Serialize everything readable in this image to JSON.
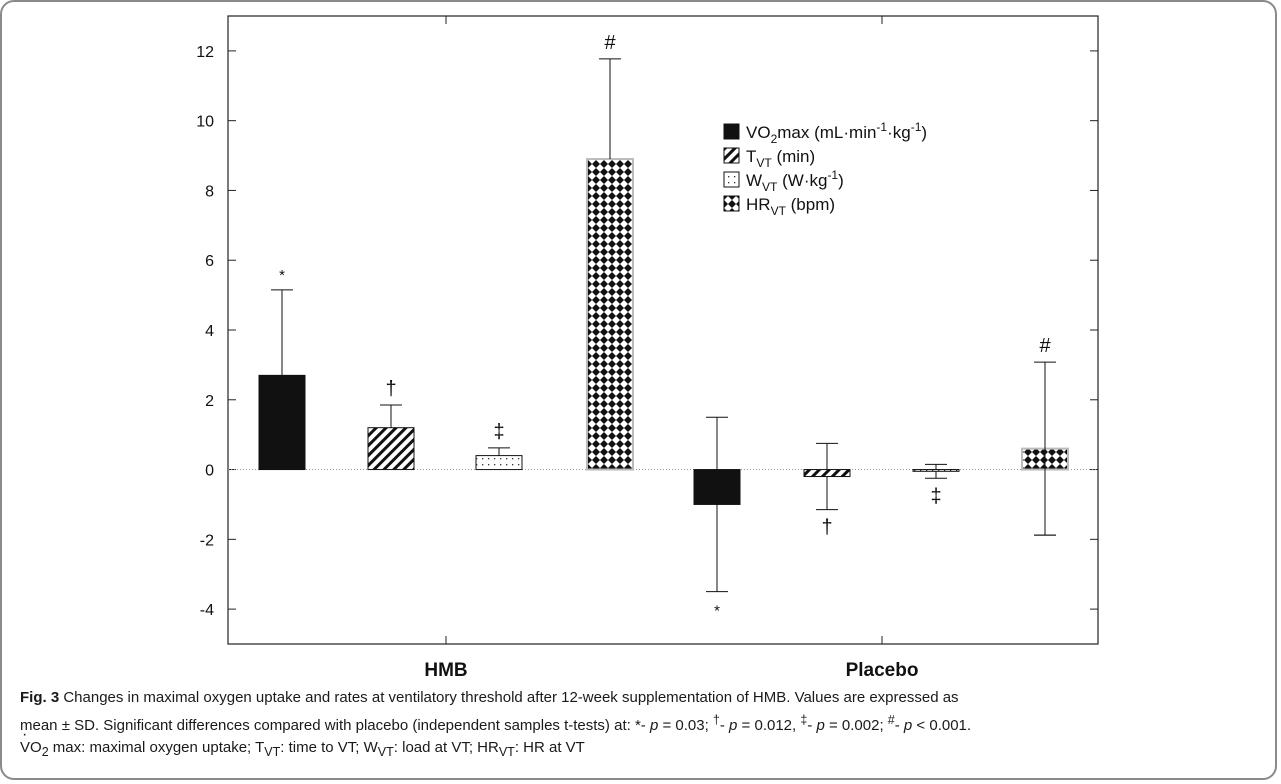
{
  "chart_data": {
    "type": "bar",
    "categories": [
      "HMB",
      "Placebo"
    ],
    "ylim": [
      -5,
      13
    ],
    "yticks": [
      -4,
      -2,
      0,
      2,
      4,
      6,
      8,
      10,
      12
    ],
    "series": [
      {
        "name": "VO2max (mL·min-1·kg-1)",
        "legend_main": "VO",
        "legend_sub": "2",
        "legend_after": "max (mL·min",
        "legend_sup1": "-1",
        "legend_mid": "·kg",
        "legend_sup2": "-1",
        "legend_end": ")",
        "pattern": "solid",
        "values": [
          2.7,
          -1.0
        ],
        "sd": [
          2.45,
          2.5
        ],
        "marks": [
          "*",
          "*"
        ]
      },
      {
        "name": "TVT (min)",
        "legend_main": "T",
        "legend_sub": "VT",
        "legend_after": " (min)",
        "pattern": "hatch",
        "values": [
          1.2,
          -0.2
        ],
        "sd": [
          0.65,
          0.95
        ],
        "marks": [
          "†",
          "†"
        ]
      },
      {
        "name": "WVT (W·kg-1)",
        "legend_main": "W",
        "legend_sub": "VT",
        "legend_after": " (W·kg",
        "legend_sup1": "-1",
        "legend_end": ")",
        "pattern": "dots",
        "values": [
          0.4,
          -0.05
        ],
        "sd": [
          0.22,
          0.2
        ],
        "marks": [
          "‡",
          "‡"
        ]
      },
      {
        "name": "HRVT (bpm)",
        "legend_main": "HR",
        "legend_sub": "VT",
        "legend_after": " (bpm)",
        "pattern": "checker",
        "values": [
          8.9,
          0.6
        ],
        "sd": [
          2.87,
          2.48
        ],
        "marks": [
          "#",
          "#"
        ]
      }
    ]
  },
  "caption": {
    "fig_label": "Fig. 3",
    "line1": " Changes in maximal oxygen uptake and rates at ventilatory threshold after 12-week supplementation of HMB. Values are expressed as",
    "line2a": "mean ± SD. Significant differences compared with placebo (independent samples t-tests) at: *- ",
    "p1": "p",
    "line2b": " = 0.03; ",
    "dag": "†",
    "line2c": "- ",
    "p2": "p",
    "line2d": " = 0.012, ",
    "ddag": "‡",
    "line2e": "- ",
    "p3": "p",
    "line2f": " = 0.002; ",
    "hash": "#",
    "line2g": "- ",
    "p4": "p",
    "line2h": " < 0.001.",
    "l3_v": "V",
    "l3_o": "O",
    "l3_2": "2",
    "l3_a": " max: maximal oxygen uptake; T",
    "l3_vt1": "VT",
    "l3_b": ": time to VT; W",
    "l3_vt2": "VT",
    "l3_c": ": load at VT; HR",
    "l3_vt3": "VT",
    "l3_d": ": HR at VT"
  }
}
